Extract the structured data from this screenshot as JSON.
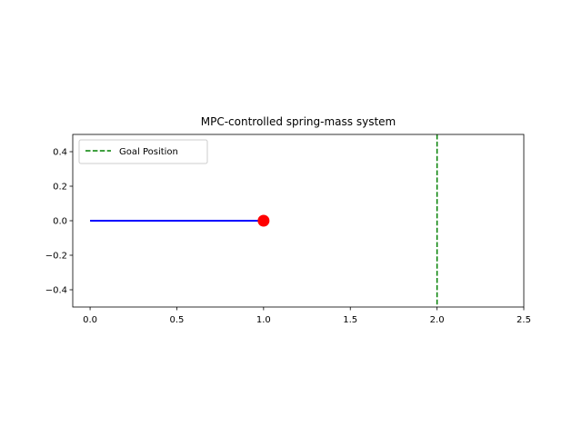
{
  "chart_data": {
    "type": "line",
    "title": "MPC-controlled spring-mass system",
    "xlabel": "",
    "ylabel": "",
    "xlim": [
      -0.1,
      2.5
    ],
    "ylim": [
      -0.5,
      0.5
    ],
    "x_ticks": [
      0.0,
      0.5,
      1.0,
      1.5,
      2.0,
      2.5
    ],
    "x_tick_labels": [
      "0.0",
      "0.5",
      "1.0",
      "1.5",
      "2.0",
      "2.5"
    ],
    "y_ticks": [
      0.4,
      0.2,
      0.0,
      -0.2,
      -0.4
    ],
    "y_tick_labels": [
      "0.4",
      "0.2",
      "0.0",
      "−0.2",
      "−0.4"
    ],
    "grid": false,
    "legend": {
      "placement": "upper-left",
      "entries": [
        "Goal Position"
      ]
    },
    "spring": {
      "x": [
        0.0,
        1.0
      ],
      "y": [
        0.0,
        0.0
      ],
      "color": "#0000ff"
    },
    "mass": {
      "x": 1.0,
      "y": 0.0,
      "color": "#ff0000"
    },
    "goal_line": {
      "x": 2.0,
      "name": "Goal Position",
      "color": "#008000",
      "style": "dashed"
    }
  }
}
